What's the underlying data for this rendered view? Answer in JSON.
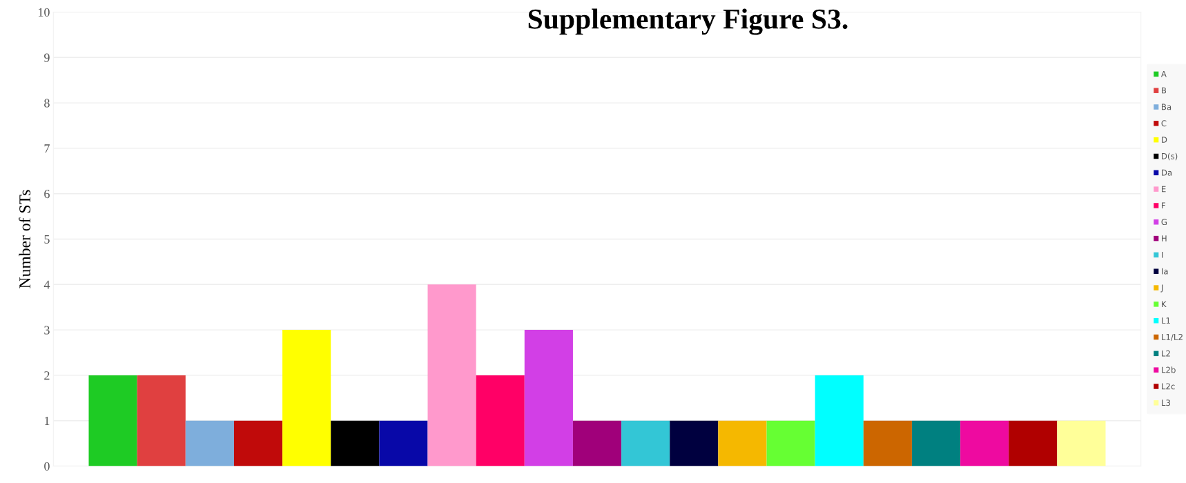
{
  "chart_data": {
    "type": "bar",
    "title": "Supplementary Figure S3.",
    "ylabel": "Number of STs",
    "categories": [
      null
    ],
    "series": [
      {
        "name": "A",
        "color": "#1ecb24",
        "values": [
          2
        ]
      },
      {
        "name": "B",
        "color": "#e04040",
        "values": [
          2
        ]
      },
      {
        "name": "Ba",
        "color": "#7eaedc",
        "values": [
          1
        ]
      },
      {
        "name": "C",
        "color": "#c00a0a",
        "values": [
          1
        ]
      },
      {
        "name": "D",
        "color": "#ffff00",
        "values": [
          3
        ]
      },
      {
        "name": "D(s)",
        "color": "#000000",
        "values": [
          1
        ]
      },
      {
        "name": "Da",
        "color": "#0808a8",
        "values": [
          1
        ]
      },
      {
        "name": "E",
        "color": "#ff99cc",
        "values": [
          4
        ]
      },
      {
        "name": "F",
        "color": "#ff0066",
        "values": [
          2
        ]
      },
      {
        "name": "G",
        "color": "#d23fe6",
        "values": [
          3
        ]
      },
      {
        "name": "H",
        "color": "#a0007a",
        "values": [
          1
        ]
      },
      {
        "name": "I",
        "color": "#33c6d6",
        "values": [
          1
        ]
      },
      {
        "name": "Ia",
        "color": "#00003f",
        "values": [
          1
        ]
      },
      {
        "name": "J",
        "color": "#f5b800",
        "values": [
          1
        ]
      },
      {
        "name": "K",
        "color": "#66ff33",
        "values": [
          1
        ]
      },
      {
        "name": "L1",
        "color": "#00ffff",
        "values": [
          2
        ]
      },
      {
        "name": "L1/L2",
        "color": "#cc6600",
        "values": [
          1
        ]
      },
      {
        "name": "L2",
        "color": "#008080",
        "values": [
          1
        ]
      },
      {
        "name": "L2b",
        "color": "#ee0aa0",
        "values": [
          1
        ]
      },
      {
        "name": "L2c",
        "color": "#b00000",
        "values": [
          1
        ]
      },
      {
        "name": "L3",
        "color": "#ffff99",
        "values": [
          1
        ]
      }
    ],
    "ylim": [
      0,
      10
    ],
    "yticks": [
      0,
      1,
      2,
      3,
      4,
      5,
      6,
      7,
      8,
      9,
      10
    ],
    "grid": "y",
    "legend": "right",
    "tick_labels": "y"
  }
}
